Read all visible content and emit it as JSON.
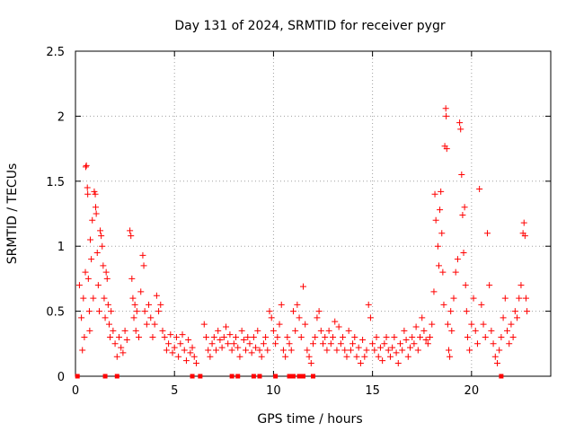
{
  "chart_data": {
    "type": "scatter",
    "title": "Day 131 of 2024, SRMTID for receiver pygr",
    "xlabel": "GPS time / hours",
    "ylabel": "SRMTID / TECUs",
    "xlim": [
      0,
      24
    ],
    "ylim": [
      0,
      2.5
    ],
    "x_ticks": [
      0,
      5,
      10,
      15,
      20
    ],
    "x_tick_labels": [
      "0",
      "5",
      "10",
      "15",
      "20"
    ],
    "y_ticks": [
      0,
      0.5,
      1,
      1.5,
      2,
      2.5
    ],
    "y_tick_labels": [
      "0",
      "0.5",
      "1",
      "1.5",
      "2",
      "2.5"
    ],
    "grid": true,
    "marker": "+",
    "series_color": "#ff0000",
    "series": [
      {
        "name": "SRMTID",
        "points": [
          [
            0.2,
            0.7
          ],
          [
            0.3,
            0.45
          ],
          [
            0.35,
            0.2
          ],
          [
            0.4,
            0.6
          ],
          [
            0.45,
            0.3
          ],
          [
            0.5,
            0.8
          ],
          [
            0.52,
            1.61
          ],
          [
            0.55,
            1.62
          ],
          [
            0.6,
            1.45
          ],
          [
            0.62,
            1.4
          ],
          [
            0.65,
            0.75
          ],
          [
            0.7,
            0.5
          ],
          [
            0.72,
            0.35
          ],
          [
            0.75,
            1.05
          ],
          [
            0.8,
            0.9
          ],
          [
            0.85,
            1.2
          ],
          [
            0.9,
            0.6
          ],
          [
            0.95,
            1.42
          ],
          [
            1.0,
            1.4
          ],
          [
            1.02,
            1.3
          ],
          [
            1.05,
            1.25
          ],
          [
            1.1,
            0.95
          ],
          [
            1.15,
            0.7
          ],
          [
            1.2,
            0.5
          ],
          [
            1.25,
            1.12
          ],
          [
            1.3,
            1.08
          ],
          [
            1.35,
            1.0
          ],
          [
            1.4,
            0.85
          ],
          [
            1.45,
            0.6
          ],
          [
            1.5,
            0.45
          ],
          [
            1.55,
            0.8
          ],
          [
            1.6,
            0.75
          ],
          [
            1.65,
            0.55
          ],
          [
            1.7,
            0.4
          ],
          [
            1.75,
            0.3
          ],
          [
            1.8,
            0.5
          ],
          [
            1.9,
            0.35
          ],
          [
            2.0,
            0.25
          ],
          [
            2.1,
            0.15
          ],
          [
            2.2,
            0.3
          ],
          [
            2.3,
            0.22
          ],
          [
            2.4,
            0.18
          ],
          [
            2.5,
            0.35
          ],
          [
            2.6,
            0.28
          ],
          [
            2.75,
            1.12
          ],
          [
            2.8,
            1.08
          ],
          [
            2.85,
            0.75
          ],
          [
            2.9,
            0.6
          ],
          [
            2.95,
            0.45
          ],
          [
            3.0,
            0.55
          ],
          [
            3.05,
            0.35
          ],
          [
            3.1,
            0.5
          ],
          [
            3.2,
            0.3
          ],
          [
            3.3,
            0.65
          ],
          [
            3.4,
            0.93
          ],
          [
            3.45,
            0.85
          ],
          [
            3.5,
            0.5
          ],
          [
            3.6,
            0.4
          ],
          [
            3.7,
            0.55
          ],
          [
            3.8,
            0.45
          ],
          [
            3.9,
            0.3
          ],
          [
            4.0,
            0.4
          ],
          [
            4.1,
            0.62
          ],
          [
            4.2,
            0.5
          ],
          [
            4.3,
            0.55
          ],
          [
            4.4,
            0.35
          ],
          [
            4.5,
            0.3
          ],
          [
            4.6,
            0.2
          ],
          [
            4.7,
            0.25
          ],
          [
            4.8,
            0.32
          ],
          [
            4.9,
            0.18
          ],
          [
            5.0,
            0.22
          ],
          [
            5.1,
            0.3
          ],
          [
            5.2,
            0.15
          ],
          [
            5.3,
            0.25
          ],
          [
            5.4,
            0.32
          ],
          [
            5.5,
            0.2
          ],
          [
            5.6,
            0.12
          ],
          [
            5.7,
            0.28
          ],
          [
            5.8,
            0.18
          ],
          [
            5.9,
            0.22
          ],
          [
            6.0,
            0.15
          ],
          [
            6.1,
            0.1
          ],
          [
            6.5,
            0.4
          ],
          [
            6.6,
            0.3
          ],
          [
            6.7,
            0.2
          ],
          [
            6.8,
            0.15
          ],
          [
            6.9,
            0.25
          ],
          [
            7.0,
            0.3
          ],
          [
            7.1,
            0.2
          ],
          [
            7.2,
            0.35
          ],
          [
            7.3,
            0.28
          ],
          [
            7.4,
            0.22
          ],
          [
            7.5,
            0.3
          ],
          [
            7.6,
            0.38
          ],
          [
            7.7,
            0.25
          ],
          [
            7.8,
            0.32
          ],
          [
            7.9,
            0.2
          ],
          [
            8.0,
            0.25
          ],
          [
            8.1,
            0.3
          ],
          [
            8.2,
            0.22
          ],
          [
            8.3,
            0.15
          ],
          [
            8.4,
            0.35
          ],
          [
            8.5,
            0.28
          ],
          [
            8.6,
            0.2
          ],
          [
            8.7,
            0.3
          ],
          [
            8.8,
            0.25
          ],
          [
            8.9,
            0.18
          ],
          [
            9.0,
            0.3
          ],
          [
            9.1,
            0.22
          ],
          [
            9.2,
            0.35
          ],
          [
            9.3,
            0.2
          ],
          [
            9.4,
            0.15
          ],
          [
            9.5,
            0.25
          ],
          [
            9.6,
            0.3
          ],
          [
            9.7,
            0.2
          ],
          [
            9.8,
            0.5
          ],
          [
            9.9,
            0.45
          ],
          [
            10.0,
            0.35
          ],
          [
            10.1,
            0.25
          ],
          [
            10.2,
            0.3
          ],
          [
            10.3,
            0.4
          ],
          [
            10.4,
            0.55
          ],
          [
            10.5,
            0.2
          ],
          [
            10.6,
            0.15
          ],
          [
            10.7,
            0.3
          ],
          [
            10.8,
            0.25
          ],
          [
            10.9,
            0.2
          ],
          [
            11.0,
            0.5
          ],
          [
            11.1,
            0.35
          ],
          [
            11.2,
            0.55
          ],
          [
            11.3,
            0.45
          ],
          [
            11.4,
            0.3
          ],
          [
            11.5,
            0.69
          ],
          [
            11.6,
            0.4
          ],
          [
            11.7,
            0.2
          ],
          [
            11.8,
            0.15
          ],
          [
            11.9,
            0.1
          ],
          [
            12.0,
            0.25
          ],
          [
            12.1,
            0.3
          ],
          [
            12.2,
            0.45
          ],
          [
            12.3,
            0.5
          ],
          [
            12.4,
            0.35
          ],
          [
            12.5,
            0.25
          ],
          [
            12.6,
            0.3
          ],
          [
            12.7,
            0.2
          ],
          [
            12.8,
            0.35
          ],
          [
            12.9,
            0.25
          ],
          [
            13.0,
            0.3
          ],
          [
            13.1,
            0.42
          ],
          [
            13.2,
            0.2
          ],
          [
            13.3,
            0.38
          ],
          [
            13.4,
            0.25
          ],
          [
            13.5,
            0.3
          ],
          [
            13.6,
            0.2
          ],
          [
            13.7,
            0.15
          ],
          [
            13.8,
            0.35
          ],
          [
            13.9,
            0.2
          ],
          [
            14.0,
            0.25
          ],
          [
            14.1,
            0.3
          ],
          [
            14.2,
            0.15
          ],
          [
            14.3,
            0.22
          ],
          [
            14.4,
            0.1
          ],
          [
            14.5,
            0.28
          ],
          [
            14.6,
            0.15
          ],
          [
            14.7,
            0.2
          ],
          [
            14.8,
            0.55
          ],
          [
            14.9,
            0.45
          ],
          [
            15.0,
            0.25
          ],
          [
            15.1,
            0.2
          ],
          [
            15.2,
            0.3
          ],
          [
            15.3,
            0.15
          ],
          [
            15.4,
            0.22
          ],
          [
            15.5,
            0.12
          ],
          [
            15.6,
            0.25
          ],
          [
            15.7,
            0.3
          ],
          [
            15.8,
            0.2
          ],
          [
            15.9,
            0.15
          ],
          [
            16.0,
            0.22
          ],
          [
            16.1,
            0.3
          ],
          [
            16.2,
            0.18
          ],
          [
            16.3,
            0.1
          ],
          [
            16.4,
            0.25
          ],
          [
            16.5,
            0.2
          ],
          [
            16.6,
            0.35
          ],
          [
            16.7,
            0.28
          ],
          [
            16.8,
            0.15
          ],
          [
            16.9,
            0.22
          ],
          [
            17.0,
            0.3
          ],
          [
            17.1,
            0.25
          ],
          [
            17.2,
            0.38
          ],
          [
            17.3,
            0.2
          ],
          [
            17.4,
            0.3
          ],
          [
            17.5,
            0.45
          ],
          [
            17.6,
            0.35
          ],
          [
            17.7,
            0.28
          ],
          [
            17.8,
            0.25
          ],
          [
            17.9,
            0.3
          ],
          [
            18.0,
            0.4
          ],
          [
            18.1,
            0.65
          ],
          [
            18.15,
            1.4
          ],
          [
            18.2,
            1.2
          ],
          [
            18.3,
            1.0
          ],
          [
            18.35,
            0.85
          ],
          [
            18.4,
            1.28
          ],
          [
            18.45,
            1.42
          ],
          [
            18.5,
            1.1
          ],
          [
            18.55,
            0.8
          ],
          [
            18.6,
            0.55
          ],
          [
            18.65,
            1.77
          ],
          [
            18.7,
            2.06
          ],
          [
            18.72,
            2.0
          ],
          [
            18.75,
            1.75
          ],
          [
            18.8,
            0.4
          ],
          [
            18.85,
            0.2
          ],
          [
            18.9,
            0.15
          ],
          [
            18.95,
            0.5
          ],
          [
            19.0,
            0.35
          ],
          [
            19.1,
            0.6
          ],
          [
            19.2,
            0.8
          ],
          [
            19.3,
            0.9
          ],
          [
            19.4,
            1.95
          ],
          [
            19.45,
            1.9
          ],
          [
            19.5,
            1.55
          ],
          [
            19.55,
            1.24
          ],
          [
            19.6,
            0.95
          ],
          [
            19.65,
            1.3
          ],
          [
            19.7,
            0.7
          ],
          [
            19.75,
            0.5
          ],
          [
            19.8,
            0.3
          ],
          [
            19.9,
            0.2
          ],
          [
            20.0,
            0.4
          ],
          [
            20.1,
            0.6
          ],
          [
            20.2,
            0.35
          ],
          [
            20.3,
            0.25
          ],
          [
            20.4,
            1.44
          ],
          [
            20.5,
            0.55
          ],
          [
            20.6,
            0.4
          ],
          [
            20.7,
            0.3
          ],
          [
            20.8,
            1.1
          ],
          [
            20.9,
            0.7
          ],
          [
            21.0,
            0.35
          ],
          [
            21.1,
            0.25
          ],
          [
            21.2,
            0.15
          ],
          [
            21.3,
            0.1
          ],
          [
            21.4,
            0.2
          ],
          [
            21.5,
            0.3
          ],
          [
            21.6,
            0.45
          ],
          [
            21.7,
            0.6
          ],
          [
            21.8,
            0.35
          ],
          [
            21.9,
            0.25
          ],
          [
            22.0,
            0.4
          ],
          [
            22.1,
            0.3
          ],
          [
            22.2,
            0.5
          ],
          [
            22.3,
            0.45
          ],
          [
            22.4,
            0.6
          ],
          [
            22.5,
            0.7
          ],
          [
            22.6,
            1.1
          ],
          [
            22.65,
            1.18
          ],
          [
            22.7,
            1.08
          ],
          [
            22.75,
            0.6
          ],
          [
            22.8,
            0.5
          ]
        ]
      }
    ],
    "zero_level_points_x": [
      0.1,
      1.5,
      2.1,
      5.9,
      6.3,
      7.9,
      8.2,
      9.0,
      9.3,
      10.1,
      10.8,
      11.0,
      11.3,
      11.5,
      12.0,
      21.5
    ]
  }
}
